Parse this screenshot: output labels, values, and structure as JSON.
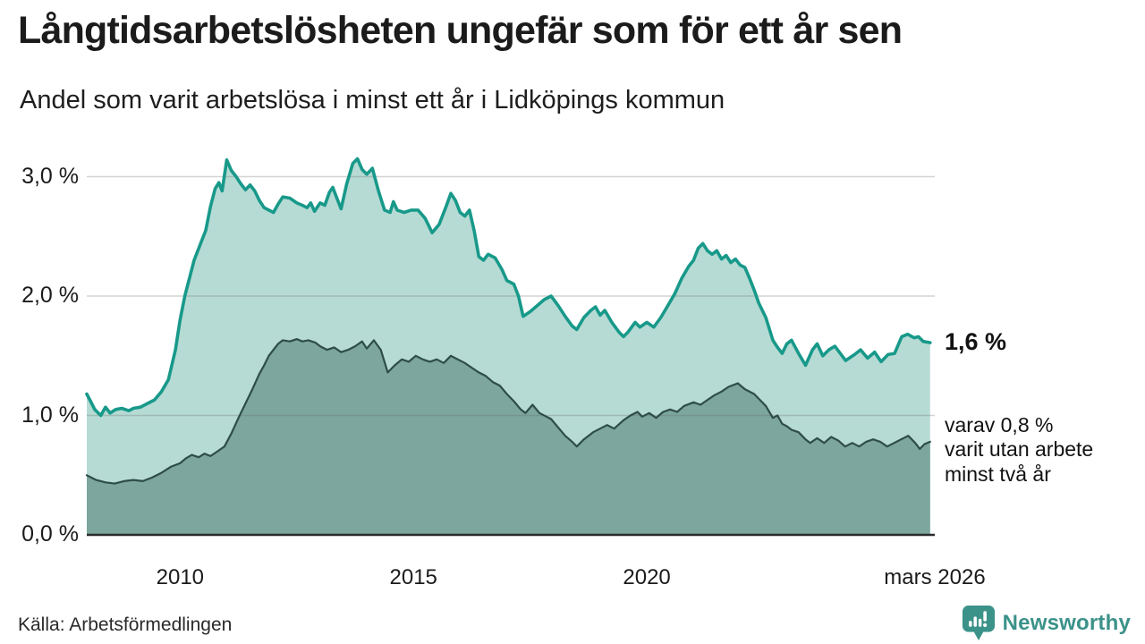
{
  "header": {
    "title": "Långtidsarbetslösheten ungefär som för ett år sen",
    "subtitle": "Andel som varit arbetslösa i minst ett år i Lidköpings kommun"
  },
  "chart_data": {
    "type": "area",
    "title": "Långtidsarbetslösheten ungefär som för ett år sen",
    "subtitle": "Andel som varit arbetslösa i minst ett år i Lidköpings kommun",
    "xlabel": "",
    "ylabel": "",
    "xlim": [
      2008.0,
      2026.17
    ],
    "ylim": [
      0,
      3.3
    ],
    "grid": "horizontal",
    "legend_position": "none",
    "colors": {
      "line_total": "#18998a",
      "fill_total": "#b6dbd4",
      "line_two_years": "#2e4d48",
      "fill_two_years": "#7ca69e",
      "gridline": "#d6d6d6",
      "baseline": "#2b2b2b",
      "brand": "#3b9289"
    },
    "y_ticks": [
      {
        "label": "0,0 %",
        "value": 0
      },
      {
        "label": "1,0 %",
        "value": 1
      },
      {
        "label": "2,0 %",
        "value": 2
      },
      {
        "label": "3,0 %",
        "value": 3
      }
    ],
    "x_ticks": [
      {
        "label": "2010",
        "year": 2010
      },
      {
        "label": "2015",
        "year": 2015
      },
      {
        "label": "2020",
        "year": 2020
      },
      {
        "label": "mars 2026",
        "year": 2026.17
      }
    ],
    "series": [
      {
        "name": "Andel arbetslösa minst ett år",
        "points": [
          [
            2008.0,
            1.18
          ],
          [
            2008.08,
            1.12
          ],
          [
            2008.17,
            1.05
          ],
          [
            2008.3,
            1.0
          ],
          [
            2008.4,
            1.07
          ],
          [
            2008.5,
            1.02
          ],
          [
            2008.62,
            1.05
          ],
          [
            2008.75,
            1.06
          ],
          [
            2008.9,
            1.04
          ],
          [
            2009.0,
            1.06
          ],
          [
            2009.15,
            1.07
          ],
          [
            2009.3,
            1.1
          ],
          [
            2009.45,
            1.13
          ],
          [
            2009.6,
            1.2
          ],
          [
            2009.75,
            1.3
          ],
          [
            2009.9,
            1.55
          ],
          [
            2010.0,
            1.8
          ],
          [
            2010.1,
            2.0
          ],
          [
            2010.2,
            2.15
          ],
          [
            2010.3,
            2.3
          ],
          [
            2010.45,
            2.45
          ],
          [
            2010.55,
            2.55
          ],
          [
            2010.65,
            2.75
          ],
          [
            2010.75,
            2.9
          ],
          [
            2010.83,
            2.95
          ],
          [
            2010.9,
            2.88
          ],
          [
            2011.0,
            3.14
          ],
          [
            2011.1,
            3.05
          ],
          [
            2011.2,
            3.0
          ],
          [
            2011.3,
            2.94
          ],
          [
            2011.4,
            2.89
          ],
          [
            2011.5,
            2.93
          ],
          [
            2011.6,
            2.88
          ],
          [
            2011.7,
            2.8
          ],
          [
            2011.8,
            2.74
          ],
          [
            2011.9,
            2.72
          ],
          [
            2012.0,
            2.7
          ],
          [
            2012.1,
            2.77
          ],
          [
            2012.2,
            2.83
          ],
          [
            2012.35,
            2.82
          ],
          [
            2012.5,
            2.78
          ],
          [
            2012.62,
            2.76
          ],
          [
            2012.72,
            2.74
          ],
          [
            2012.8,
            2.78
          ],
          [
            2012.88,
            2.71
          ],
          [
            2013.0,
            2.78
          ],
          [
            2013.1,
            2.76
          ],
          [
            2013.2,
            2.87
          ],
          [
            2013.27,
            2.91
          ],
          [
            2013.35,
            2.83
          ],
          [
            2013.45,
            2.73
          ],
          [
            2013.57,
            2.94
          ],
          [
            2013.7,
            3.11
          ],
          [
            2013.8,
            3.15
          ],
          [
            2013.9,
            3.06
          ],
          [
            2014.0,
            3.02
          ],
          [
            2014.12,
            3.07
          ],
          [
            2014.25,
            2.88
          ],
          [
            2014.38,
            2.72
          ],
          [
            2014.5,
            2.7
          ],
          [
            2014.57,
            2.79
          ],
          [
            2014.65,
            2.72
          ],
          [
            2014.8,
            2.7
          ],
          [
            2014.95,
            2.72
          ],
          [
            2015.1,
            2.72
          ],
          [
            2015.25,
            2.65
          ],
          [
            2015.4,
            2.53
          ],
          [
            2015.55,
            2.6
          ],
          [
            2015.7,
            2.75
          ],
          [
            2015.8,
            2.86
          ],
          [
            2015.9,
            2.8
          ],
          [
            2016.0,
            2.7
          ],
          [
            2016.1,
            2.67
          ],
          [
            2016.2,
            2.72
          ],
          [
            2016.3,
            2.55
          ],
          [
            2016.4,
            2.33
          ],
          [
            2016.5,
            2.3
          ],
          [
            2016.6,
            2.35
          ],
          [
            2016.75,
            2.32
          ],
          [
            2016.9,
            2.22
          ],
          [
            2017.0,
            2.13
          ],
          [
            2017.15,
            2.1
          ],
          [
            2017.25,
            2.0
          ],
          [
            2017.35,
            1.83
          ],
          [
            2017.5,
            1.87
          ],
          [
            2017.65,
            1.92
          ],
          [
            2017.8,
            1.97
          ],
          [
            2017.95,
            2.0
          ],
          [
            2018.1,
            1.92
          ],
          [
            2018.25,
            1.83
          ],
          [
            2018.4,
            1.75
          ],
          [
            2018.5,
            1.72
          ],
          [
            2018.65,
            1.82
          ],
          [
            2018.8,
            1.88
          ],
          [
            2018.9,
            1.91
          ],
          [
            2019.0,
            1.84
          ],
          [
            2019.1,
            1.88
          ],
          [
            2019.25,
            1.78
          ],
          [
            2019.4,
            1.7
          ],
          [
            2019.5,
            1.66
          ],
          [
            2019.6,
            1.7
          ],
          [
            2019.75,
            1.78
          ],
          [
            2019.85,
            1.74
          ],
          [
            2020.0,
            1.78
          ],
          [
            2020.15,
            1.74
          ],
          [
            2020.3,
            1.82
          ],
          [
            2020.45,
            1.92
          ],
          [
            2020.6,
            2.02
          ],
          [
            2020.75,
            2.15
          ],
          [
            2020.9,
            2.25
          ],
          [
            2021.0,
            2.3
          ],
          [
            2021.1,
            2.4
          ],
          [
            2021.2,
            2.44
          ],
          [
            2021.3,
            2.38
          ],
          [
            2021.4,
            2.35
          ],
          [
            2021.5,
            2.38
          ],
          [
            2021.6,
            2.31
          ],
          [
            2021.7,
            2.34
          ],
          [
            2021.8,
            2.28
          ],
          [
            2021.9,
            2.31
          ],
          [
            2022.0,
            2.26
          ],
          [
            2022.1,
            2.24
          ],
          [
            2022.2,
            2.15
          ],
          [
            2022.3,
            2.05
          ],
          [
            2022.4,
            1.94
          ],
          [
            2022.55,
            1.82
          ],
          [
            2022.7,
            1.63
          ],
          [
            2022.8,
            1.57
          ],
          [
            2022.9,
            1.52
          ],
          [
            2023.0,
            1.6
          ],
          [
            2023.1,
            1.63
          ],
          [
            2023.25,
            1.52
          ],
          [
            2023.4,
            1.42
          ],
          [
            2023.55,
            1.55
          ],
          [
            2023.65,
            1.6
          ],
          [
            2023.77,
            1.5
          ],
          [
            2023.9,
            1.55
          ],
          [
            2024.03,
            1.58
          ],
          [
            2024.26,
            1.46
          ],
          [
            2024.45,
            1.51
          ],
          [
            2024.58,
            1.55
          ],
          [
            2024.73,
            1.48
          ],
          [
            2024.88,
            1.53
          ],
          [
            2025.02,
            1.45
          ],
          [
            2025.17,
            1.51
          ],
          [
            2025.31,
            1.52
          ],
          [
            2025.46,
            1.66
          ],
          [
            2025.59,
            1.68
          ],
          [
            2025.73,
            1.65
          ],
          [
            2025.82,
            1.66
          ],
          [
            2025.92,
            1.62
          ],
          [
            2026.07,
            1.61
          ]
        ]
      },
      {
        "name": "varav utan arbete minst två år",
        "points": [
          [
            2008.0,
            0.5
          ],
          [
            2008.2,
            0.46
          ],
          [
            2008.4,
            0.44
          ],
          [
            2008.6,
            0.43
          ],
          [
            2008.8,
            0.45
          ],
          [
            2009.0,
            0.46
          ],
          [
            2009.2,
            0.45
          ],
          [
            2009.4,
            0.48
          ],
          [
            2009.6,
            0.52
          ],
          [
            2009.8,
            0.57
          ],
          [
            2010.0,
            0.6
          ],
          [
            2010.12,
            0.64
          ],
          [
            2010.25,
            0.67
          ],
          [
            2010.4,
            0.65
          ],
          [
            2010.52,
            0.68
          ],
          [
            2010.65,
            0.66
          ],
          [
            2010.8,
            0.7
          ],
          [
            2010.95,
            0.74
          ],
          [
            2011.1,
            0.85
          ],
          [
            2011.25,
            0.98
          ],
          [
            2011.4,
            1.1
          ],
          [
            2011.55,
            1.22
          ],
          [
            2011.7,
            1.35
          ],
          [
            2011.8,
            1.42
          ],
          [
            2011.9,
            1.5
          ],
          [
            2012.0,
            1.55
          ],
          [
            2012.1,
            1.6
          ],
          [
            2012.2,
            1.63
          ],
          [
            2012.35,
            1.62
          ],
          [
            2012.5,
            1.64
          ],
          [
            2012.62,
            1.62
          ],
          [
            2012.75,
            1.63
          ],
          [
            2012.9,
            1.61
          ],
          [
            2013.0,
            1.58
          ],
          [
            2013.15,
            1.55
          ],
          [
            2013.3,
            1.57
          ],
          [
            2013.45,
            1.53
          ],
          [
            2013.6,
            1.55
          ],
          [
            2013.75,
            1.58
          ],
          [
            2013.9,
            1.62
          ],
          [
            2014.0,
            1.56
          ],
          [
            2014.15,
            1.63
          ],
          [
            2014.3,
            1.55
          ],
          [
            2014.45,
            1.36
          ],
          [
            2014.6,
            1.42
          ],
          [
            2014.75,
            1.47
          ],
          [
            2014.9,
            1.45
          ],
          [
            2015.05,
            1.5
          ],
          [
            2015.2,
            1.47
          ],
          [
            2015.35,
            1.45
          ],
          [
            2015.5,
            1.47
          ],
          [
            2015.65,
            1.44
          ],
          [
            2015.8,
            1.5
          ],
          [
            2015.95,
            1.47
          ],
          [
            2016.1,
            1.44
          ],
          [
            2016.25,
            1.4
          ],
          [
            2016.4,
            1.36
          ],
          [
            2016.55,
            1.33
          ],
          [
            2016.7,
            1.28
          ],
          [
            2016.85,
            1.25
          ],
          [
            2017.0,
            1.18
          ],
          [
            2017.15,
            1.12
          ],
          [
            2017.3,
            1.05
          ],
          [
            2017.4,
            1.02
          ],
          [
            2017.55,
            1.09
          ],
          [
            2017.7,
            1.02
          ],
          [
            2017.85,
            0.99
          ],
          [
            2017.95,
            0.97
          ],
          [
            2018.1,
            0.9
          ],
          [
            2018.25,
            0.83
          ],
          [
            2018.4,
            0.78
          ],
          [
            2018.5,
            0.74
          ],
          [
            2018.65,
            0.8
          ],
          [
            2018.85,
            0.86
          ],
          [
            2019.0,
            0.89
          ],
          [
            2019.15,
            0.92
          ],
          [
            2019.3,
            0.89
          ],
          [
            2019.5,
            0.96
          ],
          [
            2019.65,
            1.0
          ],
          [
            2019.8,
            1.03
          ],
          [
            2019.9,
            0.99
          ],
          [
            2020.05,
            1.02
          ],
          [
            2020.2,
            0.98
          ],
          [
            2020.35,
            1.03
          ],
          [
            2020.5,
            1.05
          ],
          [
            2020.65,
            1.03
          ],
          [
            2020.8,
            1.08
          ],
          [
            2021.0,
            1.11
          ],
          [
            2021.15,
            1.09
          ],
          [
            2021.3,
            1.13
          ],
          [
            2021.45,
            1.17
          ],
          [
            2021.6,
            1.2
          ],
          [
            2021.75,
            1.24
          ],
          [
            2021.95,
            1.27
          ],
          [
            2022.1,
            1.22
          ],
          [
            2022.3,
            1.18
          ],
          [
            2022.45,
            1.12
          ],
          [
            2022.55,
            1.08
          ],
          [
            2022.7,
            0.98
          ],
          [
            2022.8,
            1.0
          ],
          [
            2022.9,
            0.93
          ],
          [
            2023.0,
            0.91
          ],
          [
            2023.1,
            0.88
          ],
          [
            2023.25,
            0.86
          ],
          [
            2023.4,
            0.8
          ],
          [
            2023.5,
            0.77
          ],
          [
            2023.65,
            0.81
          ],
          [
            2023.8,
            0.77
          ],
          [
            2023.95,
            0.82
          ],
          [
            2024.1,
            0.79
          ],
          [
            2024.25,
            0.74
          ],
          [
            2024.4,
            0.77
          ],
          [
            2024.55,
            0.74
          ],
          [
            2024.7,
            0.78
          ],
          [
            2024.85,
            0.8
          ],
          [
            2025.0,
            0.78
          ],
          [
            2025.15,
            0.74
          ],
          [
            2025.3,
            0.77
          ],
          [
            2025.45,
            0.8
          ],
          [
            2025.6,
            0.83
          ],
          [
            2025.75,
            0.77
          ],
          [
            2025.85,
            0.72
          ],
          [
            2025.95,
            0.76
          ],
          [
            2026.07,
            0.78
          ]
        ]
      }
    ],
    "annotations": {
      "end_value_label": "1,6 %",
      "sub_lines": [
        "varav 0,8 %",
        "varit utan arbete",
        "minst två år"
      ]
    }
  },
  "footer": {
    "source": "Källa: Arbetsförmedlingen",
    "logo_text": "Newsworthy",
    "logo_icon": "newsworthy-chart-bubble-icon"
  }
}
